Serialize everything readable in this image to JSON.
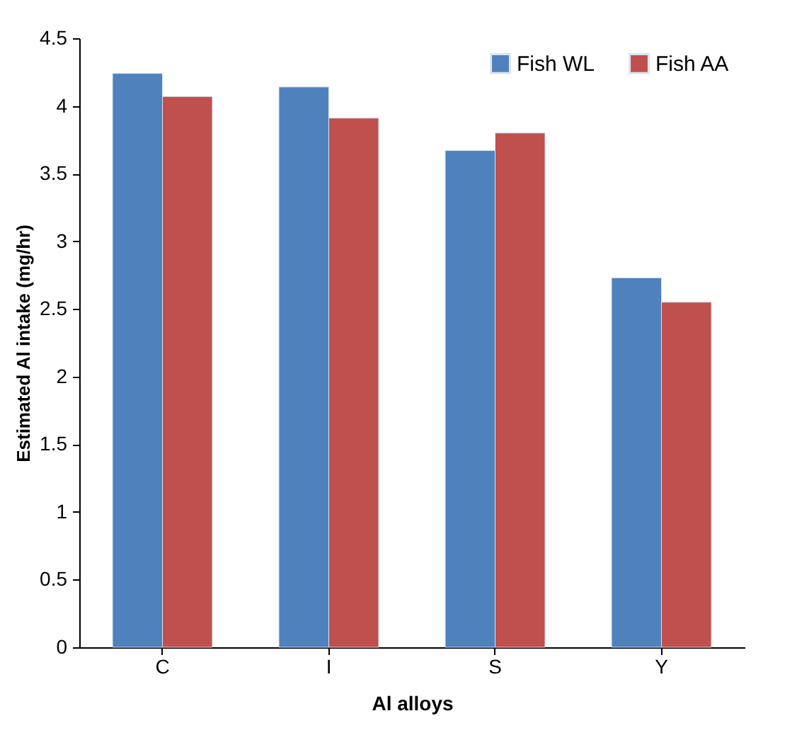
{
  "chart_data": {
    "type": "bar",
    "xlabel": "Al alloys",
    "ylabel": "Estimated Al intake (mg/hr)",
    "categories": [
      "C",
      "I",
      "S",
      "Y"
    ],
    "series": [
      {
        "name": "Fish WL",
        "color": "#4f81bd",
        "values": [
          4.24,
          4.14,
          3.67,
          2.73
        ]
      },
      {
        "name": "Fish AA",
        "color": "#c0504d",
        "values": [
          4.07,
          3.91,
          3.8,
          2.55
        ]
      }
    ],
    "ylim": [
      0,
      4.5
    ],
    "yticks": [
      0,
      0.5,
      1,
      1.5,
      2,
      2.5,
      3,
      3.5,
      4,
      4.5
    ],
    "legend": "top right"
  }
}
